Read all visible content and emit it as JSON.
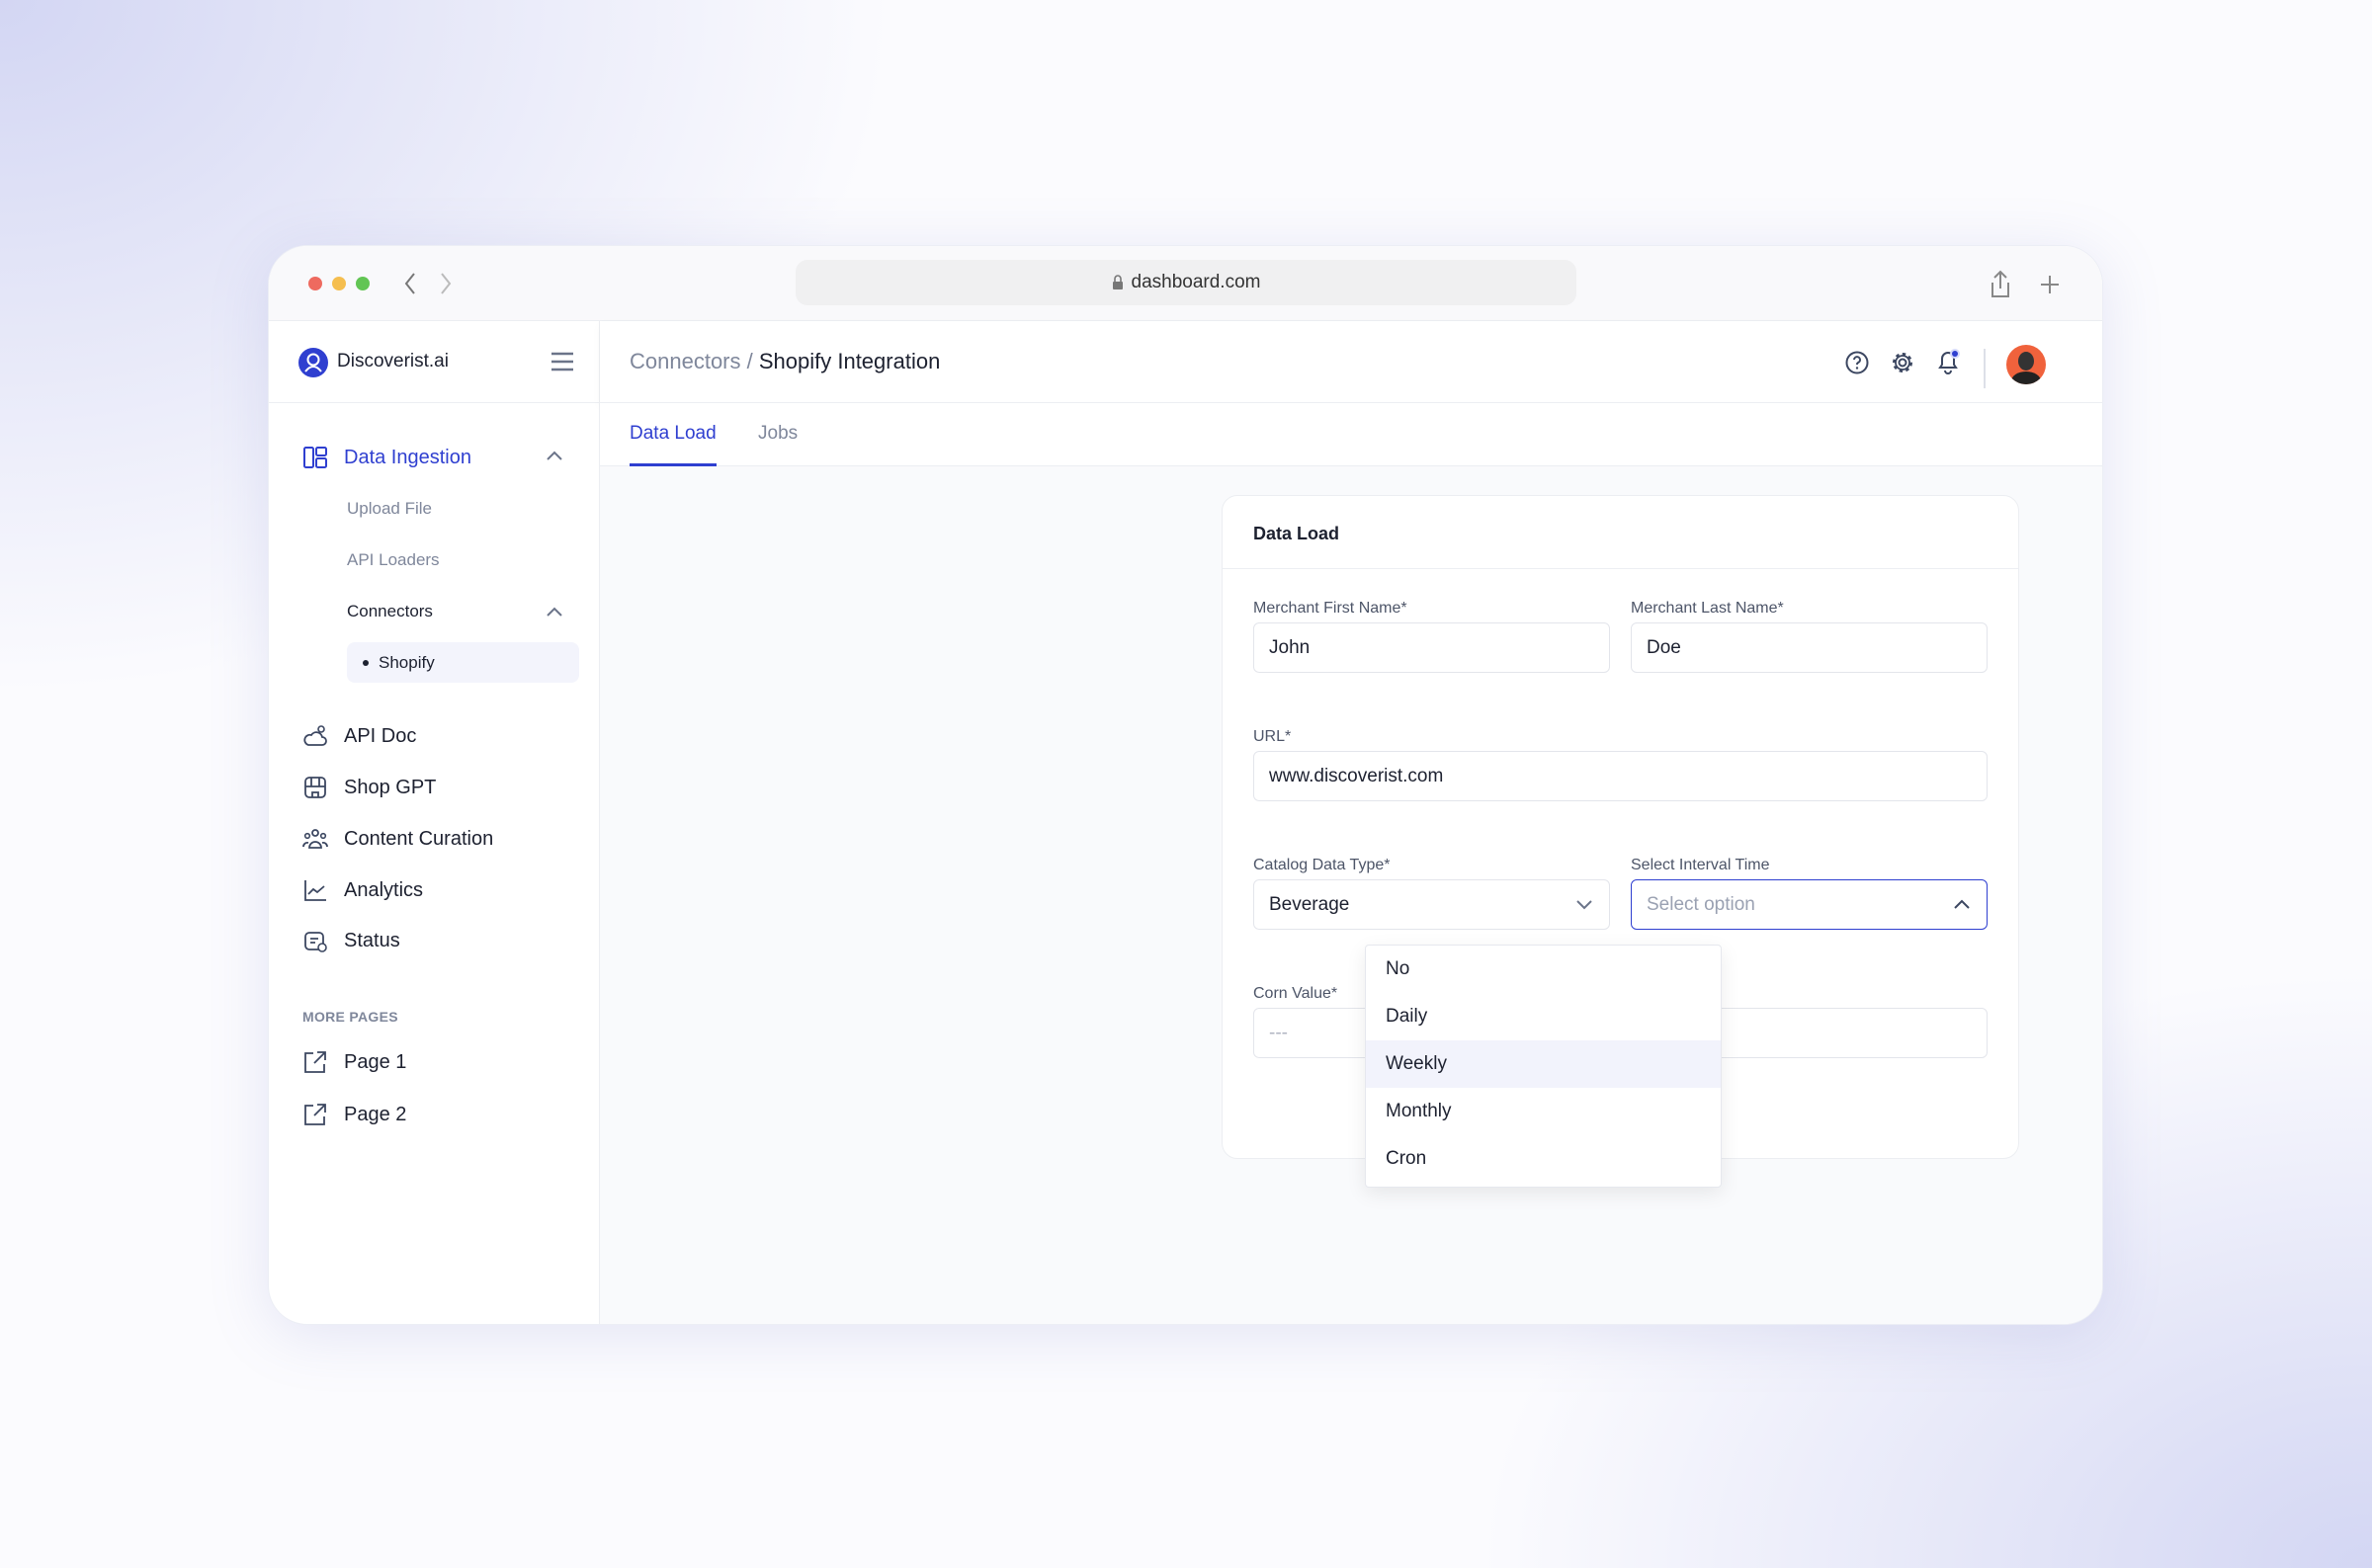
{
  "browser": {
    "url": "dashboard.com"
  },
  "brand": {
    "name": "Discoverist.ai",
    "accent": "#2f3fd0"
  },
  "header": {
    "breadcrumb_parent": "Connectors /",
    "breadcrumb_current": "Shopify Integration"
  },
  "sidebar": {
    "data_ingestion": "Data Ingestion",
    "sub_items": [
      "Upload File",
      "API Loaders",
      "Connectors"
    ],
    "connector_items": [
      "Shopify"
    ],
    "items": [
      {
        "label": "API Doc",
        "icon": "cloud-gear-icon"
      },
      {
        "label": "Shop GPT",
        "icon": "store-icon"
      },
      {
        "label": "Content Curation",
        "icon": "users-icon"
      },
      {
        "label": "Analytics",
        "icon": "chart-line-icon"
      },
      {
        "label": "Status",
        "icon": "status-icon"
      }
    ],
    "more_pages_heading": "MORE PAGES",
    "pages": [
      "Page 1",
      "Page 2"
    ]
  },
  "tabs": [
    "Data Load",
    "Jobs"
  ],
  "form": {
    "title": "Data Load",
    "first_name_label": "Merchant First Name*",
    "first_name": "John",
    "last_name_label": "Merchant Last Name*",
    "last_name": "Doe",
    "url_label": "URL*",
    "url": "www.discoverist.com",
    "catalog_label": "Catalog Data Type*",
    "catalog": "Beverage",
    "interval_label": "Select Interval Time",
    "interval_placeholder": "Select option",
    "corn_label": "Corn Value*",
    "corn_placeholder": "---",
    "interval_options": [
      "No",
      "Daily",
      "Weekly",
      "Monthly",
      "Cron"
    ],
    "highlighted_option": "Weekly"
  }
}
